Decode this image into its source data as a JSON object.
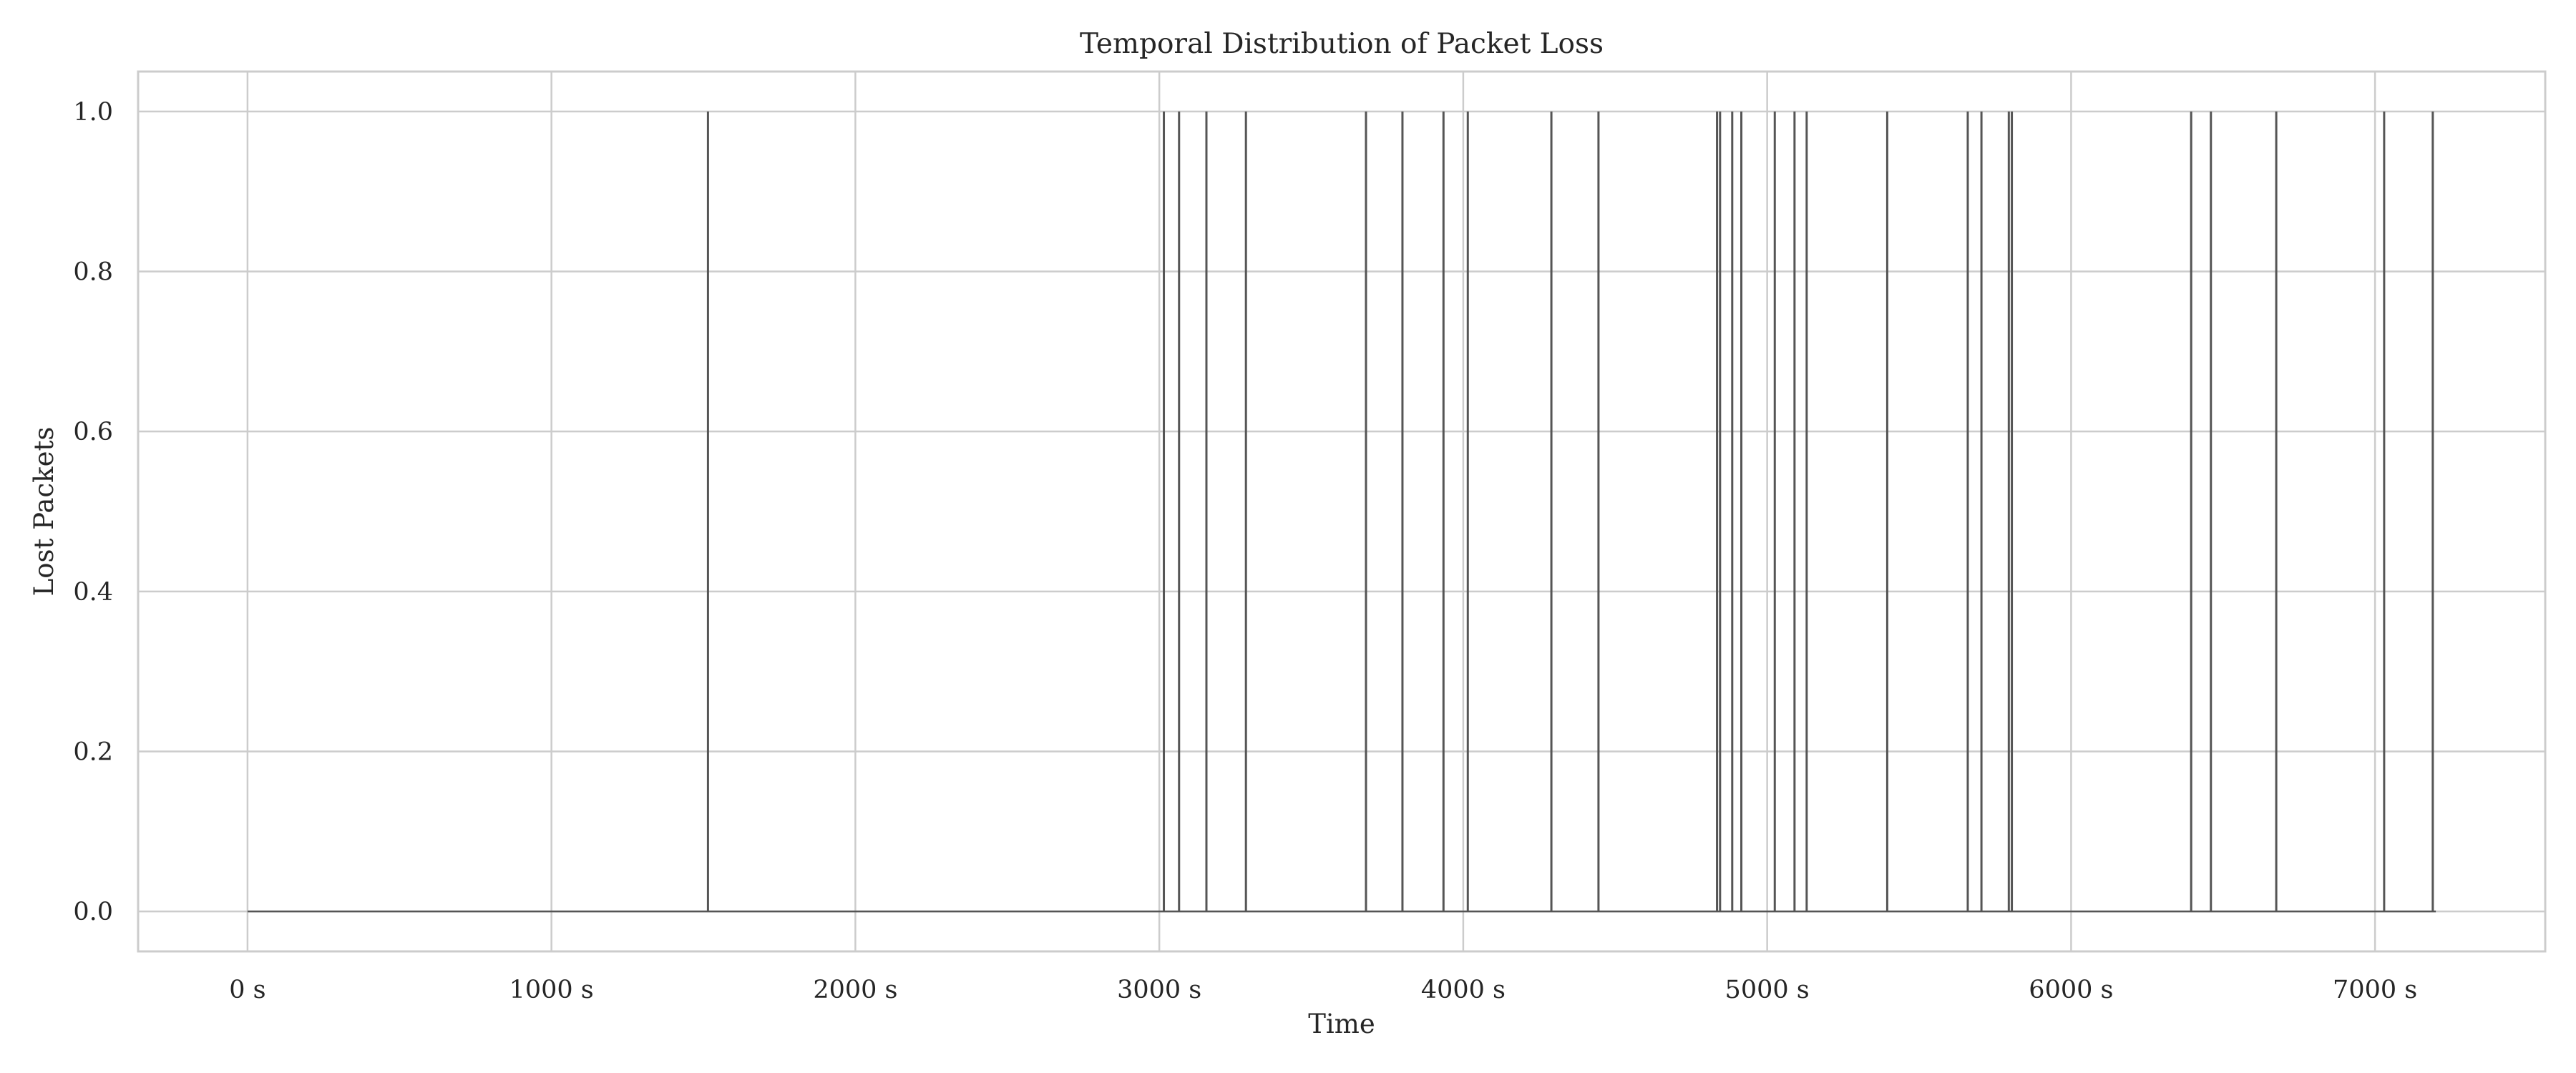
{
  "chart_data": {
    "type": "line",
    "title": "Temporal Distribution of Packet Loss",
    "xlabel": "Time",
    "ylabel": "Lost Packets",
    "xlim": [
      -360,
      7560
    ],
    "ylim": [
      -0.05,
      1.05
    ],
    "x_ticks": [
      0,
      1000,
      2000,
      3000,
      4000,
      5000,
      6000,
      7000
    ],
    "x_tick_labels": [
      "0 s",
      "1000 s",
      "2000 s",
      "3000 s",
      "4000 s",
      "5000 s",
      "6000 s",
      "7000 s"
    ],
    "y_ticks": [
      0.0,
      0.2,
      0.4,
      0.6,
      0.8,
      1.0
    ],
    "y_tick_labels": [
      "0.0",
      "0.2",
      "0.4",
      "0.6",
      "0.8",
      "1.0"
    ],
    "grid": true,
    "series": [
      {
        "color": "#555555",
        "x_start": 0,
        "x_end": 7200,
        "baseline": 0,
        "loss_times": [
          1515,
          3015,
          3065,
          3155,
          3285,
          3680,
          3800,
          3935,
          4015,
          4290,
          4445,
          4835,
          4845,
          4885,
          4915,
          5025,
          5090,
          5130,
          5395,
          5660,
          5705,
          5795,
          5805,
          6395,
          6460,
          6675,
          7030,
          7190
        ],
        "loss_value": 1
      }
    ]
  },
  "colors": {
    "grid": "#cccccc",
    "axes_border": "#cccccc",
    "line": "#555555",
    "text": "#262626"
  }
}
